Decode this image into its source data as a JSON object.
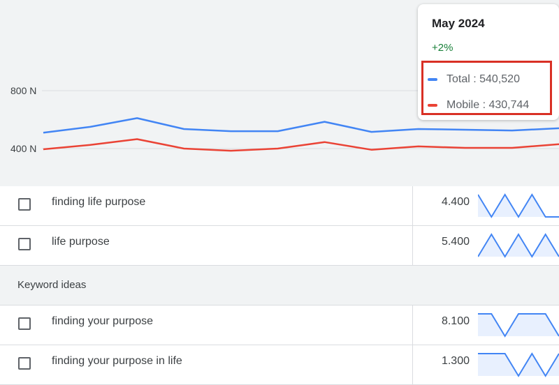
{
  "chart_data": {
    "type": "line",
    "x": [
      1,
      2,
      3,
      4,
      5,
      6,
      7,
      8,
      9,
      10,
      11,
      12
    ],
    "series": [
      {
        "name": "Total",
        "color": "#4285f4",
        "values": [
          510,
          550,
          610,
          535,
          520,
          520,
          585,
          515,
          535,
          530,
          525,
          540
        ]
      },
      {
        "name": "Mobile",
        "color": "#ea4335",
        "values": [
          395,
          425,
          465,
          400,
          385,
          400,
          445,
          392,
          415,
          405,
          405,
          430
        ]
      }
    ],
    "y_ticks": [
      {
        "value": 800,
        "label": "800 N"
      },
      {
        "value": 400,
        "label": "400 N"
      }
    ],
    "grid": true
  },
  "tooltip": {
    "title": "May 2024",
    "change": "+2%",
    "change_color": "#188038",
    "items": [
      {
        "label": "Total : 540,520",
        "color": "#4285f4"
      },
      {
        "label": "Mobile : 430,744",
        "color": "#ea4335"
      }
    ]
  },
  "rows_top": [
    {
      "keyword": "finding life purpose",
      "volume": "4.400",
      "trend": [
        1,
        0,
        1,
        0,
        1,
        0,
        0
      ]
    },
    {
      "keyword": "life purpose",
      "volume": "5.400",
      "trend": [
        0,
        1,
        0,
        1,
        0,
        1,
        0
      ]
    }
  ],
  "section": {
    "label": "Keyword ideas"
  },
  "rows_ideas": [
    {
      "keyword": "finding your purpose",
      "volume": "8.100",
      "trend": [
        1,
        1,
        0,
        1,
        1,
        1,
        0
      ]
    },
    {
      "keyword": "finding your purpose in life",
      "volume": "1.300",
      "trend": [
        1,
        1,
        1,
        0,
        1,
        0,
        1
      ]
    }
  ]
}
